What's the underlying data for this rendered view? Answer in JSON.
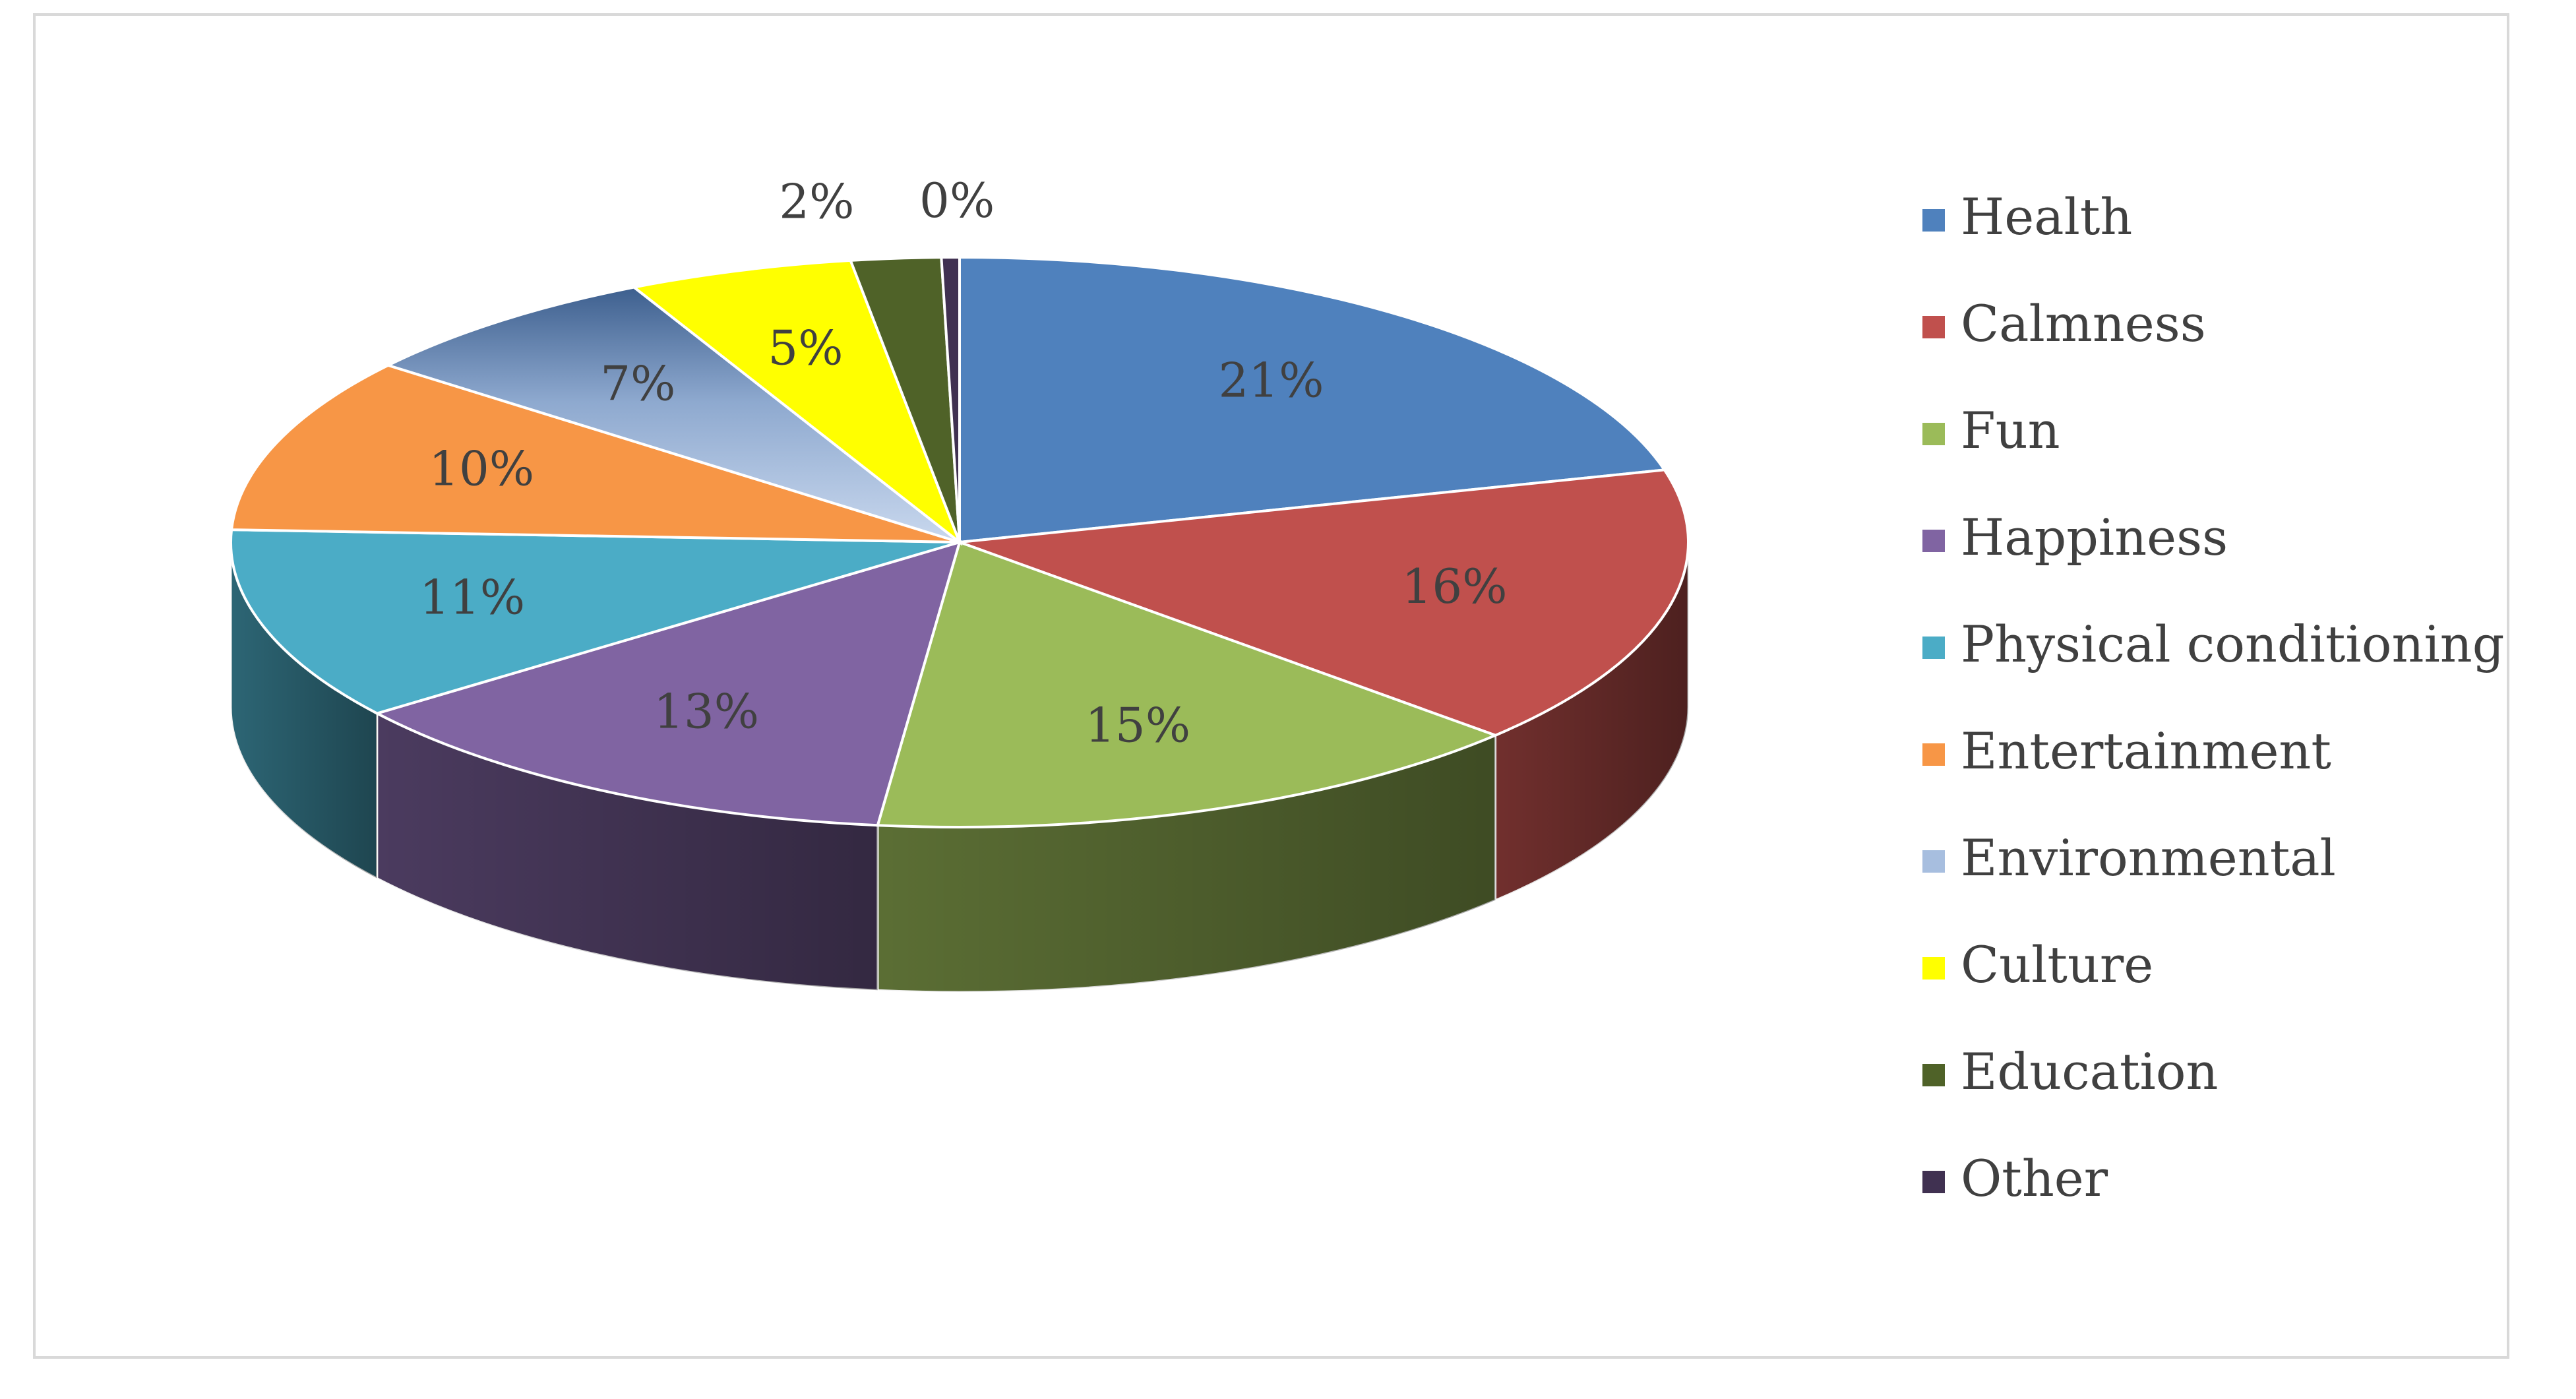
{
  "chart_data": {
    "type": "pie",
    "style": "3d",
    "title": "",
    "legend_position": "right",
    "categories": [
      "Health",
      "Calmness",
      "Fun",
      "Happiness",
      "Physical conditioning",
      "Entertainment",
      "Environmental",
      "Culture",
      "Education",
      "Other"
    ],
    "values": [
      21,
      16,
      15,
      13,
      11,
      10,
      7,
      5,
      2,
      0.4
    ],
    "labels": [
      "21%",
      "16%",
      "15%",
      "13%",
      "11%",
      "10%",
      "7%",
      "5%",
      "2%",
      "0%"
    ],
    "colors": [
      "#4f81bd",
      "#c0504d",
      "#9bbb59",
      "#8064a2",
      "#4bacc6",
      "#f79646",
      "#a7bedf",
      "#ffff00",
      "#4f6228",
      "#403151"
    ]
  }
}
